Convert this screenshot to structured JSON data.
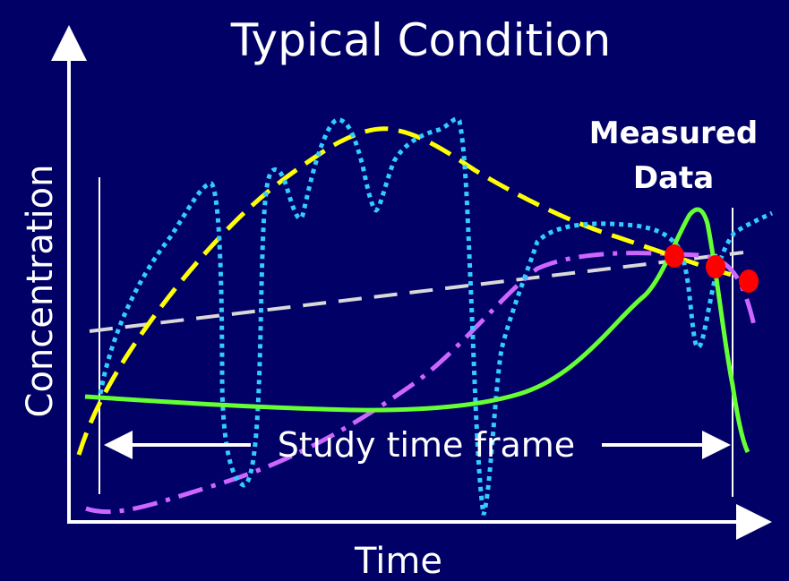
{
  "title": "Typical Condition",
  "x_axis_label": "Time",
  "y_axis_label": "Concentration",
  "measured_data_label_line1": "Measured",
  "measured_data_label_line2": "Data",
  "study_time_frame_label": "Study time frame",
  "colors": {
    "background": "#000066",
    "axes": "#ffffff",
    "yellow_curve": "#ffff00",
    "cyan_dotted_curve": "#33ccff",
    "green_curve": "#66ff33",
    "magenta_dashdot_curve": "#cc66ff",
    "gray_dashed_trend": "#d9d9d9",
    "measured_points": "#ff0000"
  }
}
